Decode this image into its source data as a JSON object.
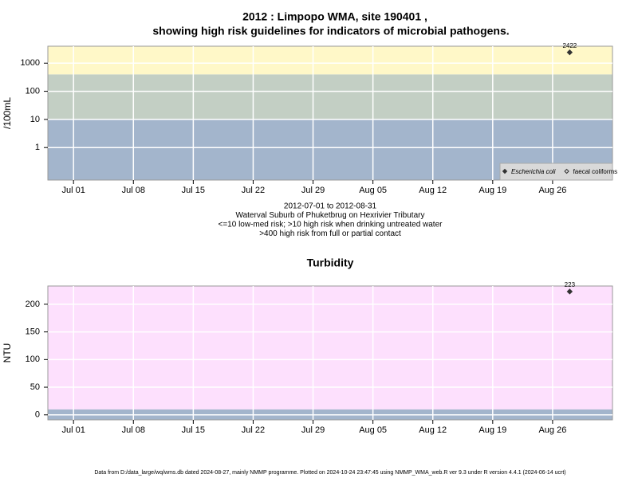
{
  "chart_data": [
    {
      "type": "scatter",
      "title": "2012 : Limpopo WMA, site 190401 ,",
      "subtitle": "showing high risk guidelines for indicators of microbial pathogens.",
      "y_label": "/100mL",
      "notes": [
        "2012-07-01 to 2012-08-31",
        "Waterval Suburb of Phuketbrug on Hexrivier Tributary",
        "<=10 low-med risk; >10 high risk when drinking untreated water",
        ">400 high risk from full or partial contact"
      ],
      "x": [
        "2012-08-28"
      ],
      "series": [
        {
          "name": "Escherichia coli",
          "color": "#333333",
          "marker": "filled",
          "values": [
            2422
          ]
        },
        {
          "name": "faecal coliforms",
          "color": "#333333",
          "marker": "open",
          "values": [
            null
          ]
        }
      ],
      "xlim": [
        "2012-06-28",
        "2012-09-02"
      ],
      "xticks": [
        {
          "value": "2012-07-01",
          "label": "Jul 01"
        },
        {
          "value": "2012-07-08",
          "label": "Jul 08"
        },
        {
          "value": "2012-07-15",
          "label": "Jul 15"
        },
        {
          "value": "2012-07-22",
          "label": "Jul 22"
        },
        {
          "value": "2012-07-29",
          "label": "Jul 29"
        },
        {
          "value": "2012-08-05",
          "label": "Aug 05"
        },
        {
          "value": "2012-08-12",
          "label": "Aug 12"
        },
        {
          "value": "2012-08-19",
          "label": "Aug 19"
        },
        {
          "value": "2012-08-26",
          "label": "Aug 26"
        }
      ],
      "ylim": [
        0.07,
        4000
      ],
      "log_y": true,
      "yticks": [
        1,
        10,
        100,
        1000
      ],
      "bands": [
        {
          "from": 0.07,
          "to": 10,
          "color": "#a3b5cc"
        },
        {
          "from": 10,
          "to": 400,
          "color": "#c3cfc4"
        },
        {
          "from": 400,
          "to": 4000,
          "color": "#fff8c8"
        }
      ],
      "grid": true,
      "legend": "bottom-right"
    },
    {
      "type": "scatter",
      "title": "Turbidity",
      "y_label": "NTU",
      "x": [
        "2012-08-28"
      ],
      "series": [
        {
          "name": "Turbidity",
          "color": "#333333",
          "marker": "filled",
          "values": [
            223
          ]
        }
      ],
      "xlim": [
        "2012-06-28",
        "2012-09-02"
      ],
      "xticks": [
        {
          "value": "2012-07-01",
          "label": "Jul 01"
        },
        {
          "value": "2012-07-08",
          "label": "Jul 08"
        },
        {
          "value": "2012-07-15",
          "label": "Jul 15"
        },
        {
          "value": "2012-07-22",
          "label": "Jul 22"
        },
        {
          "value": "2012-07-29",
          "label": "Jul 29"
        },
        {
          "value": "2012-08-05",
          "label": "Aug 05"
        },
        {
          "value": "2012-08-12",
          "label": "Aug 12"
        },
        {
          "value": "2012-08-19",
          "label": "Aug 19"
        },
        {
          "value": "2012-08-26",
          "label": "Aug 26"
        }
      ],
      "ylim": [
        -9,
        233
      ],
      "log_y": false,
      "yticks": [
        0,
        50,
        100,
        150,
        200
      ],
      "bands": [
        {
          "from": -9,
          "to": 10,
          "color": "#a3b5cc"
        },
        {
          "from": 10,
          "to": 233,
          "color": "#fde0fd"
        }
      ],
      "grid": true
    }
  ],
  "footer": "Data from D:/data_large/wq/wms.db dated 2024-08-27, mainly NMMP programme. Plotted on 2024-10-24 23:47:45 using NMMP_WMA_web.R ver 9.3 under R version 4.4.1 (2024-06-14 ucrt)"
}
